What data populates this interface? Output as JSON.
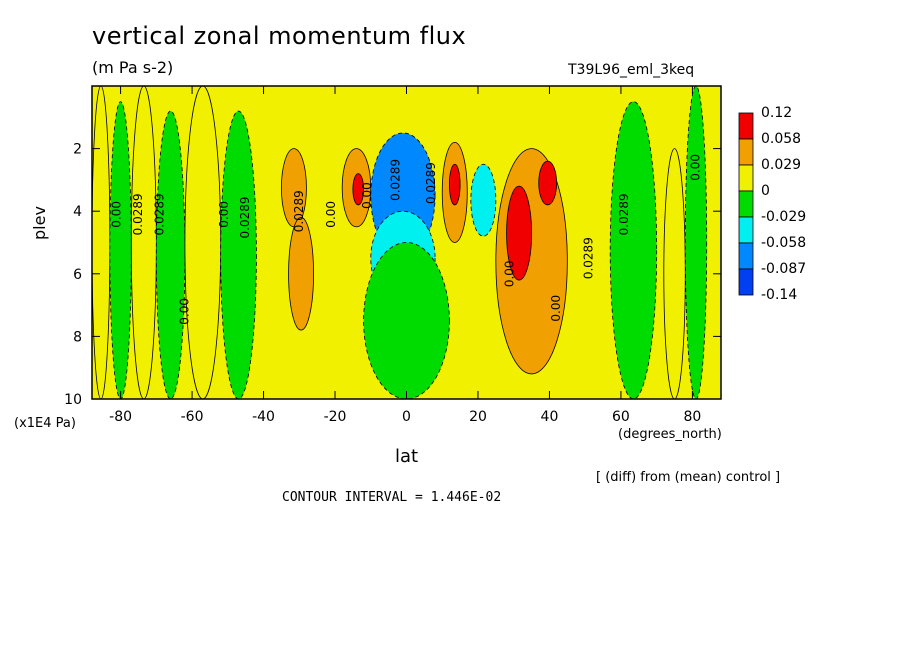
{
  "chart_data": {
    "type": "heatmap",
    "title": "vertical zonal momentum flux",
    "units": "(m Pa s-2)",
    "run_id": "T39L96_eml_3keq",
    "xlabel": "lat",
    "xunit": "(degrees_north)",
    "ylabel": "plev",
    "yunit": "(x1E4 Pa)",
    "xlim": [
      -88,
      88
    ],
    "ylim": [
      10,
      0
    ],
    "xticks": [
      "-80",
      "-60",
      "-40",
      "-20",
      "0",
      "20",
      "40",
      "60",
      "80"
    ],
    "yticks": [
      "2",
      "4",
      "6",
      "8",
      "10"
    ],
    "legend_levels": [
      "0.12",
      "0.058",
      "0.029",
      "0",
      "-0.029",
      "-0.058",
      "-0.087",
      "-0.14"
    ],
    "legend_colors": [
      "#f00000",
      "#f0a000",
      "#f0f000",
      "#00dc00",
      "#00f0f0",
      "#0088ff",
      "#0040f0"
    ],
    "legend_placement": "right",
    "contour_interval_text": "CONTOUR INTERVAL = 1.446E-02",
    "note": "[ (diff) from (mean) control ]",
    "contour_labels": [
      "0.00",
      "0.0289",
      "0.0289",
      "0.00"
    ],
    "regions": [
      {
        "lat": [
          -88,
          -83
        ],
        "plev": [
          0,
          10
        ],
        "class": "0 to 0.029"
      },
      {
        "lat": [
          -83,
          -77
        ],
        "plev": [
          0.5,
          10
        ],
        "class": "-0.029 to 0"
      },
      {
        "lat": [
          -77,
          -70
        ],
        "plev": [
          0,
          10
        ],
        "class": "0 to 0.029"
      },
      {
        "lat": [
          -70,
          -62
        ],
        "plev": [
          0.8,
          10
        ],
        "class": "-0.029 to 0"
      },
      {
        "lat": [
          -62,
          -52
        ],
        "plev": [
          0,
          10
        ],
        "class": "0 to 0.029"
      },
      {
        "lat": [
          -52,
          -42
        ],
        "plev": [
          0.8,
          10
        ],
        "class": "-0.029 to 0"
      },
      {
        "lat": [
          -35,
          -28
        ],
        "plev": [
          2,
          4.5
        ],
        "class": "0.029 to 0.058"
      },
      {
        "lat": [
          -33,
          -26
        ],
        "plev": [
          4.2,
          7.8
        ],
        "class": "0.029 to 0.058"
      },
      {
        "lat": [
          -18,
          -10
        ],
        "plev": [
          2,
          4.5
        ],
        "class": "0.029 to 0.058"
      },
      {
        "lat": [
          -15,
          -12
        ],
        "plev": [
          2.8,
          3.8
        ],
        "class": "0.058 to 0.12"
      },
      {
        "lat": [
          -10,
          8
        ],
        "plev": [
          1.5,
          5.5
        ],
        "class": "-0.087 to -0.058"
      },
      {
        "lat": [
          -10,
          8
        ],
        "plev": [
          4,
          7
        ],
        "class": "-0.058 to -0.029"
      },
      {
        "lat": [
          -12,
          12
        ],
        "plev": [
          5,
          10
        ],
        "class": "-0.029 to 0"
      },
      {
        "lat": [
          10,
          17
        ],
        "plev": [
          1.8,
          5
        ],
        "class": "0.029 to 0.058"
      },
      {
        "lat": [
          12,
          15
        ],
        "plev": [
          2.5,
          3.8
        ],
        "class": "0.058 to 0.12"
      },
      {
        "lat": [
          18,
          25
        ],
        "plev": [
          2.5,
          4.8
        ],
        "class": "-0.058 to -0.029"
      },
      {
        "lat": [
          25,
          45
        ],
        "plev": [
          2,
          9.2
        ],
        "class": "0.029 to 0.058"
      },
      {
        "lat": [
          28,
          35
        ],
        "plev": [
          3.2,
          6.2
        ],
        "class": "0.058 to 0.12"
      },
      {
        "lat": [
          37,
          42
        ],
        "plev": [
          2.4,
          3.8
        ],
        "class": "0.058 to 0.12"
      },
      {
        "lat": [
          57,
          70
        ],
        "plev": [
          0.5,
          10
        ],
        "class": "-0.029 to 0"
      },
      {
        "lat": [
          72,
          78
        ],
        "plev": [
          2,
          10
        ],
        "class": "0 to 0.029"
      },
      {
        "lat": [
          78,
          84
        ],
        "plev": [
          0,
          10
        ],
        "class": "-0.029 to 0"
      }
    ]
  }
}
